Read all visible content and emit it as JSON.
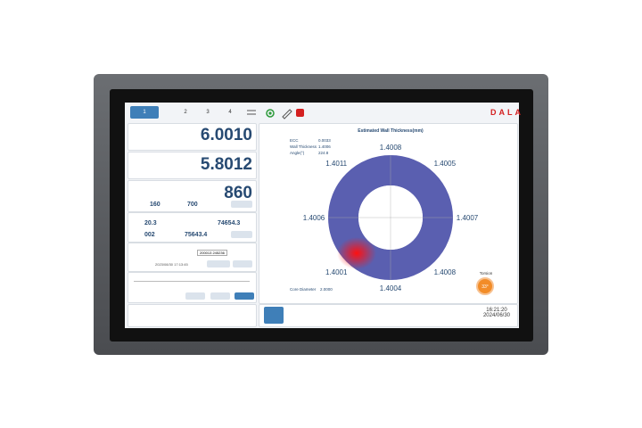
{
  "tabs": [
    "1",
    "2",
    "3",
    "4"
  ],
  "brand": "DALA",
  "panels": {
    "value_1": "6.0010",
    "value_2": "5.8012",
    "value_3": "860",
    "value_3a": "160",
    "value_3b": "700",
    "value_4a": "20.3",
    "value_4b": "74654.3",
    "value_4c": "002",
    "value_4d": "75643.4",
    "code": "200013 245236",
    "timestamp": "2023/08/30 17:13:45"
  },
  "chart": {
    "title": "Estimated Wall Thickness(mm)",
    "readings": [
      "1.4008",
      "1.4005",
      "1.4007",
      "1.4008",
      "1.4004",
      "1.4001",
      "1.4006",
      "1.4011"
    ],
    "info": [
      {
        "label": "ECC",
        "value": "0.0033"
      },
      {
        "label": "Wall Thickness",
        "value": "1.4006"
      },
      {
        "label": "Angle(°)",
        "value": "224.8"
      }
    ],
    "core": {
      "label": "Core Diameter",
      "value": "2.0000"
    }
  },
  "torsion": {
    "label": "Torsion",
    "value": "33°"
  },
  "clock": {
    "time": "16:21:20",
    "date": "2024/06/30"
  }
}
